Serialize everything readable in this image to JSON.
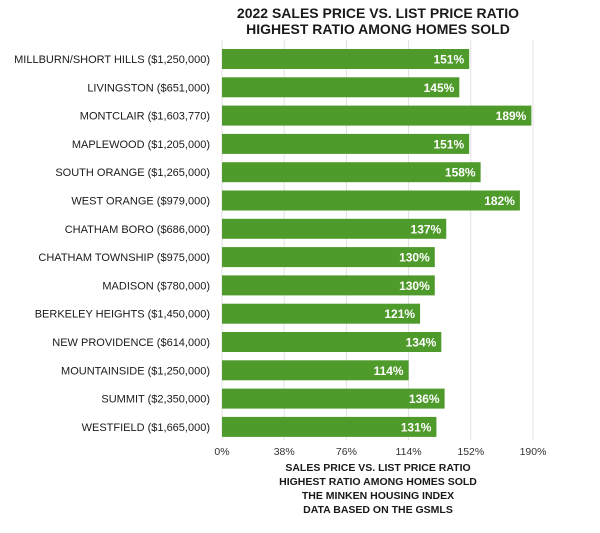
{
  "chart_data": {
    "type": "bar",
    "orientation": "horizontal",
    "title": [
      "2022 SALES PRICE VS. LIST PRICE RATIO",
      "HIGHEST RATIO AMONG HOMES SOLD"
    ],
    "categories": [
      "MILLBURN/SHORT HILLS  ($1,250,000)",
      "LIVINGSTON ($651,000)",
      "MONTCLAIR ($1,603,770)",
      "MAPLEWOOD ($1,205,000)",
      "SOUTH ORANGE ($1,265,000)",
      "WEST ORANGE ($979,000)",
      "CHATHAM BORO ($686,000)",
      "CHATHAM TOWNSHIP ($975,000)",
      "MADISON ($780,000)",
      "BERKELEY HEIGHTS ($1,450,000)",
      "NEW PROVIDENCE ($614,000)",
      "MOUNTAINSIDE ($1,250,000)",
      "SUMMIT ($2,350,000)",
      "WESTFIELD ($1,665,000)"
    ],
    "values": [
      151,
      145,
      189,
      151,
      158,
      182,
      137,
      130,
      130,
      121,
      134,
      114,
      136,
      131
    ],
    "value_labels": [
      "151%",
      "145%",
      "189%",
      "151%",
      "158%",
      "182%",
      "137%",
      "130%",
      "130%",
      "121%",
      "134%",
      "114%",
      "136%",
      "131%"
    ],
    "xlim": [
      0,
      190
    ],
    "xticks": [
      0,
      38,
      76,
      114,
      152,
      190
    ],
    "xtick_labels": [
      "0%",
      "38%",
      "76%",
      "114%",
      "152%",
      "190%"
    ],
    "caption": [
      "SALES PRICE VS. LIST PRICE RATIO",
      "HIGHEST RATIO AMONG HOMES SOLD",
      "THE MINKEN HOUSING INDEX",
      "DATA BASED ON THE GSMLS"
    ],
    "grid": "vertical",
    "legend": "none",
    "colors": {
      "bar": "#4e9a2a",
      "bar_label": "#ffffff",
      "grid": "#e0e0e0",
      "text": "#1a1a1a"
    }
  }
}
